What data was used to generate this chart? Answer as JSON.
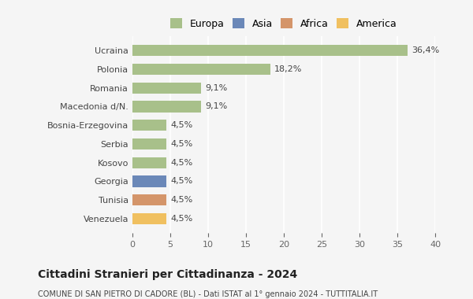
{
  "categories": [
    "Ucraina",
    "Polonia",
    "Romania",
    "Macedonia d/N.",
    "Bosnia-Erzegovina",
    "Serbia",
    "Kosovo",
    "Georgia",
    "Tunisia",
    "Venezuela"
  ],
  "values": [
    36.4,
    18.2,
    9.1,
    9.1,
    4.5,
    4.5,
    4.5,
    4.5,
    4.5,
    4.5
  ],
  "labels": [
    "36,4%",
    "18,2%",
    "9,1%",
    "9,1%",
    "4,5%",
    "4,5%",
    "4,5%",
    "4,5%",
    "4,5%",
    "4,5%"
  ],
  "colors": [
    "#a8c08a",
    "#a8c08a",
    "#a8c08a",
    "#a8c08a",
    "#a8c08a",
    "#a8c08a",
    "#a8c08a",
    "#6b88b8",
    "#d4956a",
    "#f0c060"
  ],
  "legend_labels": [
    "Europa",
    "Asia",
    "Africa",
    "America"
  ],
  "legend_colors": [
    "#a8c08a",
    "#6b88b8",
    "#d4956a",
    "#f0c060"
  ],
  "title": "Cittadini Stranieri per Cittadinanza - 2024",
  "subtitle": "COMUNE DI SAN PIETRO DI CADORE (BL) - Dati ISTAT al 1° gennaio 2024 - TUTTITALIA.IT",
  "xlim": [
    0,
    40
  ],
  "xticks": [
    0,
    5,
    10,
    15,
    20,
    25,
    30,
    35,
    40
  ],
  "bg_color": "#f5f5f5",
  "grid_color": "#ffffff",
  "bar_height": 0.6
}
